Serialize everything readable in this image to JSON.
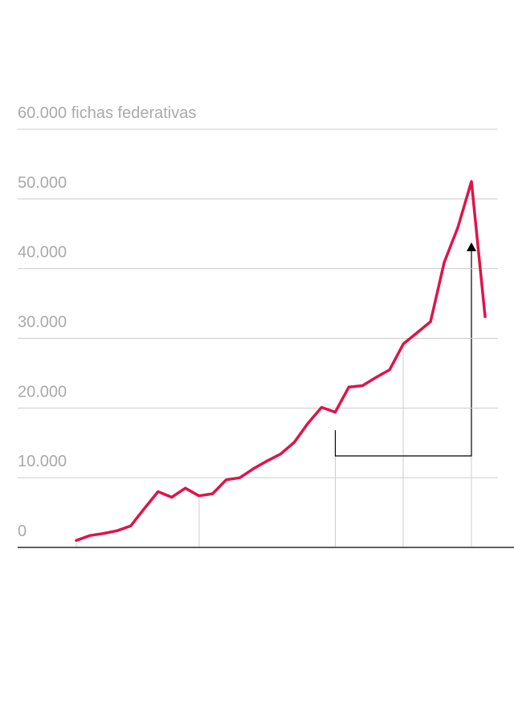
{
  "chart_data": {
    "type": "line",
    "categories": [
      null,
      null,
      null,
      null,
      null,
      null,
      null,
      null,
      null,
      null,
      null,
      null,
      null,
      null,
      null,
      null,
      null,
      null,
      null,
      null,
      null,
      null,
      null,
      null,
      null,
      null,
      null,
      null,
      null,
      null,
      null
    ],
    "values": [
      1000,
      1700,
      2000,
      2400,
      3100,
      5600,
      8000,
      7200,
      8500,
      7400,
      7700,
      9700,
      10000,
      11300,
      12400,
      13400,
      15100,
      17800,
      20100,
      19400,
      23000,
      23200,
      24400,
      25500,
      29200,
      30800,
      32400,
      40900,
      45900,
      52500,
      33100
    ],
    "color": "#e0134a",
    "ylim": [
      0,
      60000
    ],
    "yticks": [
      0,
      {
        "value": 10000,
        "label": "10.000"
      },
      {
        "value": 20000,
        "label": "20.000"
      },
      {
        "value": 30000,
        "label": "30.000"
      },
      {
        "value": 40000,
        "label": "40.000"
      },
      {
        "value": 50000,
        "label": "50.000"
      },
      {
        "value": 60000,
        "label": "60.000 fichas federativas"
      }
    ],
    "grid": true
  }
}
